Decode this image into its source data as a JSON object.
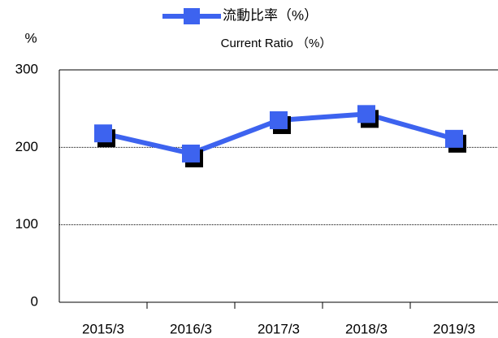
{
  "chart_data": {
    "type": "line",
    "y_label": "%",
    "legend_subtitle": "Current Ratio （%）",
    "categories": [
      "2015/3",
      "2016/3",
      "2017/3",
      "2018/3",
      "2019/3"
    ],
    "series": [
      {
        "name": "流動比率（%）",
        "color": "#3d63ef",
        "values": [
          218,
          192,
          235,
          243,
          211
        ]
      }
    ],
    "ylim": [
      0,
      300
    ],
    "yticks": [
      0,
      100,
      200,
      300
    ],
    "grid": true,
    "legend": "top"
  }
}
